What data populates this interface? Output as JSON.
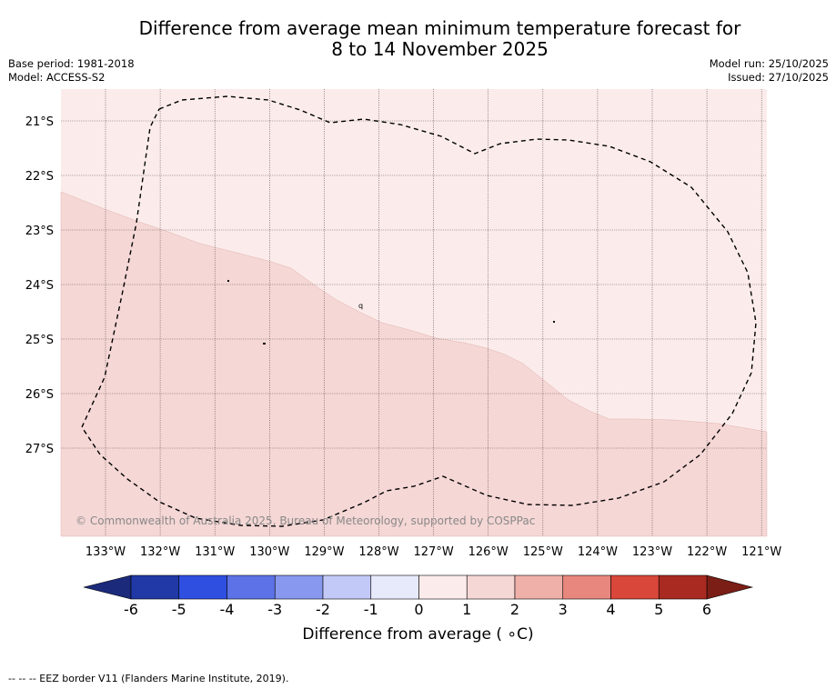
{
  "title": {
    "line1": "Difference from average mean minimum temperature forecast for",
    "line2": "8 to 14 November 2025"
  },
  "meta": {
    "base_period": "Base period: 1981-2018",
    "model": "Model: ACCESS-S2",
    "model_run": "Model run: 25/10/2025",
    "issued": "Issued: 27/10/2025"
  },
  "map": {
    "lat_labels": [
      "21°S",
      "22°S",
      "23°S",
      "24°S",
      "25°S",
      "26°S",
      "27°S"
    ],
    "lon_labels": [
      "133°W",
      "132°W",
      "131°W",
      "130°W",
      "129°W",
      "128°W",
      "127°W",
      "126°W",
      "125°W",
      "124°W",
      "123°W",
      "122°W",
      "121°W"
    ],
    "copyright": "© Commonwealth of Australia 2025, Bureau of Meteorology, supported by COSPPac",
    "region_colors": {
      "band_0_1": "#fbeceb",
      "band_1_2": "#f5d7d5"
    },
    "island_label": "q"
  },
  "colorbar": {
    "bins": [
      {
        "from": -6,
        "to": -5,
        "color": "#2139a6"
      },
      {
        "from": -5,
        "to": -4,
        "color": "#2f4fe0"
      },
      {
        "from": -4,
        "to": -3,
        "color": "#5c72e6"
      },
      {
        "from": -3,
        "to": -2,
        "color": "#8898ee"
      },
      {
        "from": -2,
        "to": -1,
        "color": "#c2c9f6"
      },
      {
        "from": -1,
        "to": 0,
        "color": "#e7eafb"
      },
      {
        "from": 0,
        "to": 1,
        "color": "#fbeceb"
      },
      {
        "from": 1,
        "to": 2,
        "color": "#f5d7d5"
      },
      {
        "from": 2,
        "to": 3,
        "color": "#efb0aa"
      },
      {
        "from": 3,
        "to": 4,
        "color": "#e8877d"
      },
      {
        "from": 4,
        "to": 5,
        "color": "#d9463a"
      },
      {
        "from": 5,
        "to": 6,
        "color": "#a82a20"
      }
    ],
    "under_color": "#1b2a7a",
    "over_color": "#7a1e16",
    "tick_labels": [
      "-6",
      "-5",
      "-4",
      "-3",
      "-2",
      "-1",
      "0",
      "1",
      "2",
      "3",
      "4",
      "5",
      "6"
    ],
    "label": "Difference from average ( ∘C)"
  },
  "footnote": "--  --  -- EEZ border V11 (Flanders Marine Institute, 2019)."
}
